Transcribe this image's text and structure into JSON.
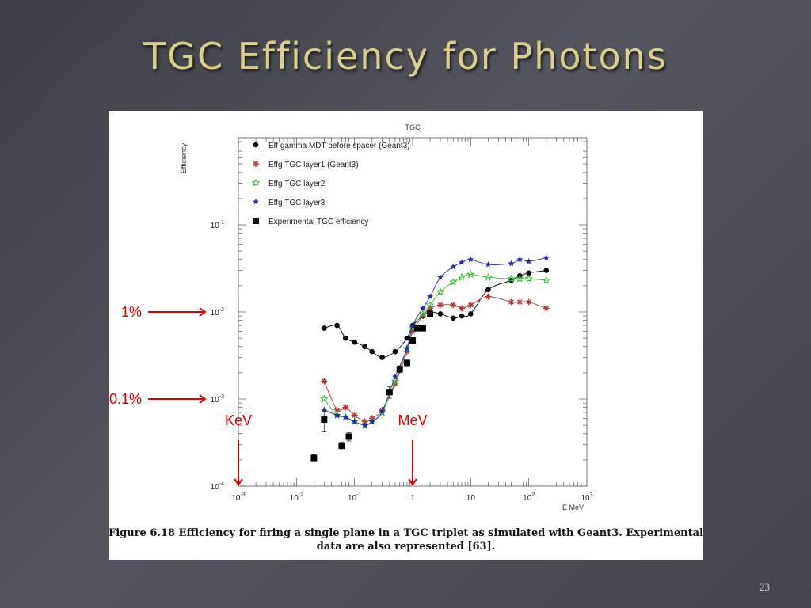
{
  "slide": {
    "title": "TGC Efficiency for Photons",
    "page_number": "23"
  },
  "figure": {
    "caption": "Figure 6.18 Efficiency for firing a single plane in a TGC triplet as simulated with Geant3. Experimental data are also represented [63]."
  },
  "annotations": [
    {
      "label": "1%",
      "target_y": 0.01
    },
    {
      "label": "0.1%",
      "target_y": 0.001
    },
    {
      "label": "KeV",
      "target_x": 0.001
    },
    {
      "label": "MeV",
      "target_x": 1
    }
  ],
  "chart_data": {
    "type": "scatter",
    "title": "TGC",
    "xlabel": "E MeV",
    "ylabel": "Efficiency",
    "xscale": "log",
    "yscale": "log",
    "xlim": [
      0.001,
      1000
    ],
    "ylim": [
      0.0001,
      1
    ],
    "x_ticks": [
      {
        "value": 0.001,
        "base": "10",
        "exp": "-3"
      },
      {
        "value": 0.01,
        "base": "10",
        "exp": "-2"
      },
      {
        "value": 0.1,
        "base": "10",
        "exp": "-1"
      },
      {
        "value": 1,
        "base": "1",
        "exp": ""
      },
      {
        "value": 10,
        "base": "10",
        "exp": ""
      },
      {
        "value": 100,
        "base": "10",
        "exp": "2"
      },
      {
        "value": 1000,
        "base": "10",
        "exp": "3"
      }
    ],
    "y_ticks": [
      {
        "value": 0.0001,
        "base": "10",
        "exp": "-4"
      },
      {
        "value": 0.001,
        "base": "10",
        "exp": "-3"
      },
      {
        "value": 0.01,
        "base": "10",
        "exp": "-2"
      },
      {
        "value": 0.1,
        "base": "10",
        "exp": "-1"
      }
    ],
    "legend_position": "top-left",
    "series": [
      {
        "name": "Eff gamma MDT before spacer (Geant3)",
        "marker": "circle",
        "color": "#000000",
        "curve": true,
        "x": [
          0.03,
          0.05,
          0.07,
          0.1,
          0.15,
          0.2,
          0.3,
          0.5,
          0.8,
          1,
          1.5,
          2,
          3,
          5,
          7,
          10,
          20,
          50,
          70,
          100,
          200
        ],
        "y": [
          0.0065,
          0.007,
          0.005,
          0.0045,
          0.004,
          0.0035,
          0.003,
          0.0035,
          0.005,
          0.007,
          0.009,
          0.01,
          0.0095,
          0.0085,
          0.009,
          0.0095,
          0.018,
          0.023,
          0.026,
          0.028,
          0.03
        ]
      },
      {
        "name": "Effg  TGC layer1 (Geant3)",
        "marker": "star",
        "color": "#b03535",
        "curve": true,
        "x": [
          0.03,
          0.05,
          0.07,
          0.1,
          0.15,
          0.2,
          0.3,
          0.5,
          0.8,
          1,
          1.5,
          2,
          3,
          5,
          7,
          10,
          20,
          50,
          70,
          100,
          200
        ],
        "y": [
          0.0016,
          0.00075,
          0.0008,
          0.00065,
          0.00055,
          0.0006,
          0.00075,
          0.0015,
          0.0035,
          0.006,
          0.009,
          0.011,
          0.012,
          0.012,
          0.011,
          0.012,
          0.015,
          0.013,
          0.013,
          0.013,
          0.011
        ]
      },
      {
        "name": "Effg TGC layer2",
        "marker": "open-star",
        "color": "#3ab83a",
        "curve": true,
        "x": [
          0.03,
          0.05,
          0.07,
          0.1,
          0.15,
          0.2,
          0.3,
          0.5,
          0.8,
          1,
          1.5,
          2,
          3,
          5,
          7,
          10,
          20,
          50,
          70,
          100,
          200
        ],
        "y": [
          0.001,
          0.00065,
          0.00062,
          0.00055,
          0.0005,
          0.00055,
          0.0007,
          0.0016,
          0.0038,
          0.0065,
          0.0095,
          0.012,
          0.017,
          0.022,
          0.025,
          0.027,
          0.025,
          0.024,
          0.024,
          0.024,
          0.023
        ]
      },
      {
        "name": "Effg TGC layer3",
        "marker": "star",
        "color": "#2a2aa8",
        "curve": true,
        "x": [
          0.03,
          0.05,
          0.07,
          0.1,
          0.15,
          0.2,
          0.3,
          0.5,
          0.8,
          1,
          1.5,
          2,
          3,
          5,
          7,
          10,
          20,
          50,
          70,
          100,
          200
        ],
        "y": [
          0.00075,
          0.00065,
          0.00062,
          0.00055,
          0.0005,
          0.00055,
          0.00072,
          0.0018,
          0.0038,
          0.007,
          0.011,
          0.015,
          0.025,
          0.033,
          0.037,
          0.04,
          0.035,
          0.036,
          0.04,
          0.038,
          0.042
        ]
      },
      {
        "name": "Experimental TGC efficiency",
        "marker": "square",
        "color": "#000000",
        "curve": false,
        "x": [
          0.02,
          0.03,
          0.06,
          0.08,
          0.4,
          0.6,
          0.8,
          1,
          1.2,
          1.5,
          2
        ],
        "y": [
          0.00021,
          0.00058,
          0.00029,
          0.00037,
          0.0012,
          0.0022,
          0.0026,
          0.0047,
          0.0065,
          0.0065,
          0.0095
        ],
        "y_err": [
          2e-05,
          0.00016,
          3e-05,
          4e-05,
          0.00018,
          0.0002,
          0.0002,
          0.0003,
          0.0004,
          0.0004,
          0.0005
        ]
      }
    ]
  }
}
